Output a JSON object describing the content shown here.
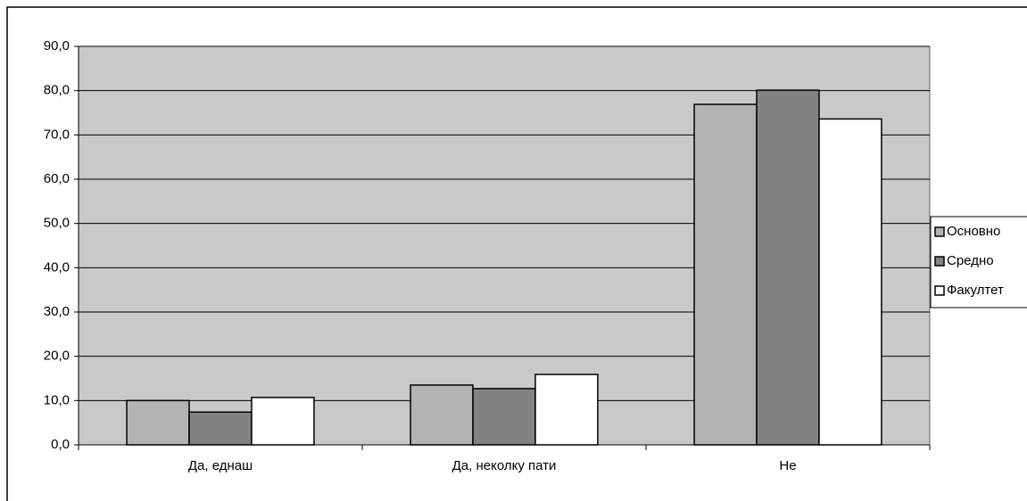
{
  "chart_data": {
    "type": "bar",
    "categories": [
      "Да, еднаш",
      "Да, неколку пати",
      "Не"
    ],
    "series": [
      {
        "name": "Основно",
        "color": "#b3b3b3",
        "values": [
          10.0,
          13.5,
          76.9
        ]
      },
      {
        "name": "Средно",
        "color": "#828282",
        "values": [
          7.4,
          12.7,
          80.1
        ]
      },
      {
        "name": "Факултет",
        "color": "#ffffff",
        "values": [
          10.7,
          15.9,
          73.6
        ]
      }
    ],
    "ylim": [
      0,
      90
    ],
    "yticks": [
      {
        "value": 0,
        "label": "0,0"
      },
      {
        "value": 10,
        "label": "10,0"
      },
      {
        "value": 20,
        "label": "20,0"
      },
      {
        "value": 30,
        "label": "30,0"
      },
      {
        "value": 40,
        "label": "40,0"
      },
      {
        "value": 50,
        "label": "50,0"
      },
      {
        "value": 60,
        "label": "60,0"
      },
      {
        "value": 70,
        "label": "70,0"
      },
      {
        "value": 80,
        "label": "80,0"
      },
      {
        "value": 90,
        "label": "90,0"
      }
    ],
    "grid": true,
    "legend": "right"
  }
}
